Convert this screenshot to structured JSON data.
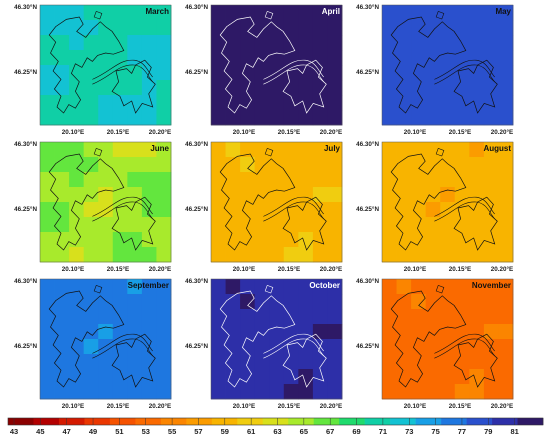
{
  "colorbar": {
    "ticks": [
      43,
      45,
      47,
      49,
      51,
      53,
      55,
      57,
      59,
      61,
      63,
      65,
      67,
      69,
      71,
      73,
      75,
      77,
      79,
      81
    ],
    "range": [
      43,
      82
    ],
    "colors": [
      "#8b0000",
      "#b30000",
      "#d41a00",
      "#ea3700",
      "#f55200",
      "#fa6a00",
      "#fb8500",
      "#fb9c00",
      "#f8b400",
      "#f0cd10",
      "#d8e01c",
      "#a8ea2c",
      "#63e63e",
      "#1fdb6d",
      "#10cfa6",
      "#13c2d3",
      "#189fe6",
      "#1e77e0",
      "#2a50cd",
      "#2d2fa8",
      "#2e1966"
    ]
  },
  "map": {
    "lat_ticks": [
      "46.30°N",
      "46.25°N"
    ],
    "lon_ticks": [
      "20.10°E",
      "20.15°E",
      "20.20°E"
    ]
  },
  "chart_data": {
    "type": "heatmap",
    "panels": [
      {
        "title": "March",
        "base": 70.5,
        "var": 1.2
      },
      {
        "title": "April",
        "base": 81.8,
        "var": 0.1
      },
      {
        "title": "May",
        "base": 77.3,
        "var": 0.6
      },
      {
        "title": "June",
        "base": 64.5,
        "var": 1.6
      },
      {
        "title": "July",
        "base": 59.0,
        "var": 0.8
      },
      {
        "title": "August",
        "base": 58.5,
        "var": 0.8
      },
      {
        "title": "September",
        "base": 75.3,
        "var": 0.8
      },
      {
        "title": "October",
        "base": 79.6,
        "var": 0.6
      },
      {
        "title": "November",
        "base": 53.4,
        "var": 0.8
      }
    ]
  }
}
